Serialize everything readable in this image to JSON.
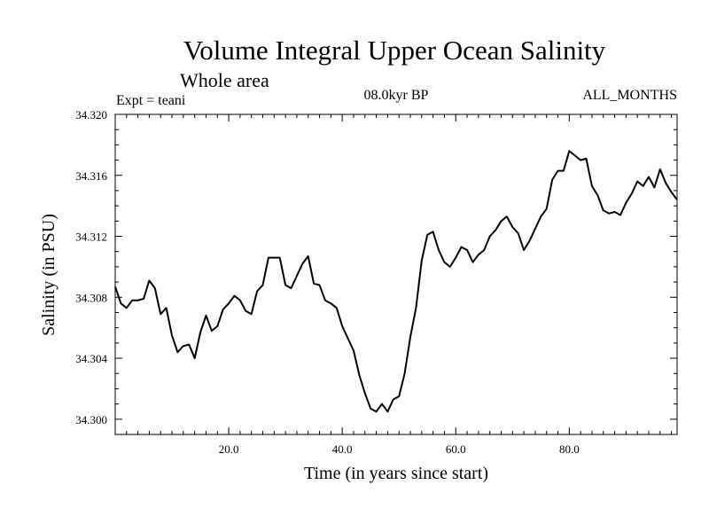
{
  "chart_data": {
    "type": "line",
    "title": "Volume Integral Upper Ocean Salinity",
    "subtitle": "Whole area",
    "annotations": {
      "experiment": "Expt = teani",
      "period": "08.0kyr BP",
      "months": "ALL_MONTHS"
    },
    "xlabel": "Time (in years since start)",
    "ylabel": "Salinity (in PSU)",
    "xlim": [
      0,
      99
    ],
    "ylim": [
      34.299,
      34.32
    ],
    "xticks": [
      {
        "value": 20,
        "label": "20.0"
      },
      {
        "value": 40,
        "label": "40.0"
      },
      {
        "value": 60,
        "label": "60.0"
      },
      {
        "value": 80,
        "label": "80.0"
      }
    ],
    "yticks": [
      {
        "value": 34.3,
        "label": "34.300"
      },
      {
        "value": 34.304,
        "label": "34.304"
      },
      {
        "value": 34.308,
        "label": "34.308"
      },
      {
        "value": 34.312,
        "label": "34.312"
      },
      {
        "value": 34.316,
        "label": "34.316"
      },
      {
        "value": 34.32,
        "label": "34.320"
      }
    ],
    "series": [
      {
        "name": "Salinity",
        "x": [
          0,
          1,
          2,
          3,
          4,
          5,
          6,
          7,
          8,
          9,
          10,
          11,
          12,
          13,
          14,
          15,
          16,
          17,
          18,
          19,
          20,
          21,
          22,
          23,
          24,
          25,
          26,
          27,
          28,
          29,
          30,
          31,
          32,
          33,
          34,
          35,
          36,
          37,
          38,
          39,
          40,
          41,
          42,
          43,
          44,
          45,
          46,
          47,
          48,
          49,
          50,
          51,
          52,
          53,
          54,
          55,
          56,
          57,
          58,
          59,
          60,
          61,
          62,
          63,
          64,
          65,
          66,
          67,
          68,
          69,
          70,
          71,
          72,
          73,
          74,
          75,
          76,
          77,
          78,
          79,
          80,
          81,
          82,
          83,
          84,
          85,
          86,
          87,
          88,
          89,
          90,
          91,
          92,
          93,
          94,
          95,
          96,
          97,
          98,
          99
        ],
        "values": [
          34.3087,
          34.3076,
          34.3073,
          34.3078,
          34.3078,
          34.3079,
          34.3091,
          34.3086,
          34.3069,
          34.3073,
          34.3055,
          34.3044,
          34.3048,
          34.3049,
          34.304,
          34.3057,
          34.3068,
          34.3058,
          34.3061,
          34.3072,
          34.3076,
          34.3081,
          34.3078,
          34.3071,
          34.3069,
          34.3084,
          34.3088,
          34.3106,
          34.3106,
          34.3106,
          34.3088,
          34.3086,
          34.3094,
          34.3102,
          34.3107,
          34.3089,
          34.3088,
          34.3078,
          34.3076,
          34.3073,
          34.3061,
          34.3053,
          34.3045,
          34.3029,
          34.3017,
          34.3007,
          34.3005,
          34.301,
          34.3005,
          34.3013,
          34.3015,
          34.303,
          34.3054,
          34.3073,
          34.3104,
          34.3121,
          34.3123,
          34.3111,
          34.3103,
          34.31,
          34.3106,
          34.3113,
          34.3111,
          34.3103,
          34.3108,
          34.3111,
          34.312,
          34.3124,
          34.313,
          34.3133,
          34.3126,
          34.3122,
          34.3111,
          34.3117,
          34.3125,
          34.3133,
          34.3138,
          34.3157,
          34.3163,
          34.3163,
          34.3176,
          34.3173,
          34.317,
          34.3171,
          34.3153,
          34.3147,
          34.3137,
          34.3135,
          34.3136,
          34.3134,
          34.3142,
          34.3148,
          34.3156,
          34.3153,
          34.3159,
          34.3152,
          34.3164,
          34.3155,
          34.3149,
          34.3144
        ]
      }
    ]
  }
}
